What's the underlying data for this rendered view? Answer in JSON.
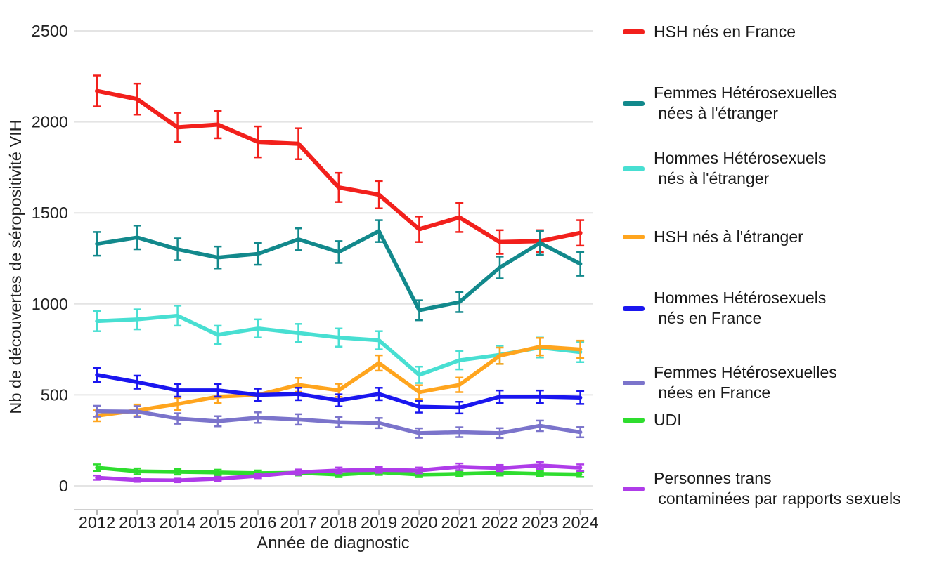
{
  "chart_data": {
    "type": "line",
    "title": "",
    "xlabel": "Année de diagnostic",
    "ylabel": "Nb de découvertes de séropositivité VIH",
    "x": [
      2012,
      2013,
      2014,
      2015,
      2016,
      2017,
      2018,
      2019,
      2020,
      2021,
      2022,
      2023,
      2024
    ],
    "ylim": [
      0,
      2500
    ],
    "yticks": [
      0,
      500,
      1000,
      1500,
      2000,
      2500
    ],
    "ytick_labels": [
      "0",
      "500",
      "1000",
      "1500",
      "2000",
      "2500"
    ],
    "grid": "horizontal-only",
    "legend_position": "right",
    "error_bars": true,
    "series": [
      {
        "name": "HSH nés en France",
        "label_lines": [
          "HSH nés en France"
        ],
        "color": "#f2201c",
        "values": [
          2170,
          2125,
          1970,
          1985,
          1890,
          1880,
          1640,
          1600,
          1410,
          1475,
          1340,
          1345,
          1390
        ],
        "errors": [
          85,
          85,
          80,
          75,
          85,
          85,
          80,
          75,
          70,
          80,
          65,
          60,
          70
        ]
      },
      {
        "name": "Femmes Hétérosexuelles nées à l'étranger",
        "label_lines": [
          "Femmes Hétérosexuelles",
          " nées à l'étranger"
        ],
        "color": "#12898c",
        "values": [
          1330,
          1365,
          1300,
          1255,
          1275,
          1355,
          1285,
          1400,
          965,
          1010,
          1200,
          1335,
          1220
        ],
        "errors": [
          65,
          65,
          60,
          60,
          60,
          60,
          60,
          60,
          55,
          55,
          60,
          65,
          65
        ]
      },
      {
        "name": "Hommes Hétérosexuels nés à l'étranger",
        "label_lines": [
          "Hommes Hétérosexuels",
          " nés à l'étranger"
        ],
        "color": "#48dfd2",
        "values": [
          905,
          915,
          935,
          830,
          865,
          840,
          815,
          800,
          610,
          690,
          720,
          760,
          735
        ],
        "errors": [
          55,
          55,
          55,
          50,
          50,
          50,
          50,
          50,
          45,
          50,
          50,
          55,
          55
        ]
      },
      {
        "name": "HSH nés à l'étranger",
        "label_lines": [
          "HSH nés à l'étranger"
        ],
        "color": "#ffa51e",
        "values": [
          385,
          415,
          450,
          490,
          500,
          555,
          525,
          675,
          515,
          555,
          715,
          765,
          750
        ],
        "errors": [
          30,
          32,
          33,
          35,
          35,
          38,
          36,
          42,
          38,
          40,
          45,
          48,
          48
        ]
      },
      {
        "name": "Hommes Hétérosexuels nés en France",
        "label_lines": [
          "Hommes Hétérosexuels",
          " nés en France"
        ],
        "color": "#1a16ef",
        "values": [
          610,
          570,
          525,
          525,
          500,
          505,
          470,
          505,
          435,
          430,
          490,
          490,
          485
        ],
        "errors": [
          38,
          36,
          35,
          35,
          34,
          34,
          33,
          34,
          32,
          32,
          34,
          34,
          35
        ]
      },
      {
        "name": "Femmes Hétérosexuelles nées en France",
        "label_lines": [
          "Femmes Hétérosexuelles",
          " nées en France"
        ],
        "color": "#7b74cb",
        "values": [
          410,
          408,
          370,
          355,
          375,
          365,
          350,
          345,
          290,
          295,
          290,
          330,
          295
        ],
        "errors": [
          30,
          30,
          29,
          28,
          29,
          29,
          28,
          28,
          26,
          27,
          27,
          29,
          28
        ]
      },
      {
        "name": "UDI",
        "label_lines": [
          "UDI"
        ],
        "color": "#2edd2e",
        "values": [
          100,
          80,
          77,
          74,
          70,
          72,
          62,
          75,
          62,
          66,
          72,
          66,
          63
        ],
        "errors": [
          18,
          16,
          15,
          15,
          15,
          15,
          14,
          15,
          14,
          14,
          15,
          14,
          14
        ]
      },
      {
        "name": "Personnes trans contaminées par rapports sexuels",
        "label_lines": [
          "Personnes trans",
          " contaminées par rapports sexuels"
        ],
        "color": "#af3ce9",
        "values": [
          45,
          32,
          30,
          39,
          55,
          75,
          85,
          88,
          85,
          105,
          98,
          112,
          100
        ],
        "errors": [
          12,
          10,
          10,
          11,
          13,
          15,
          16,
          16,
          16,
          18,
          17,
          19,
          18
        ]
      }
    ],
    "colors": {
      "gridline": "#e4e4e4",
      "axis_line": "#d0d0d0",
      "tick_mark": "#b8b8b8",
      "tick_text": "#262626"
    }
  }
}
